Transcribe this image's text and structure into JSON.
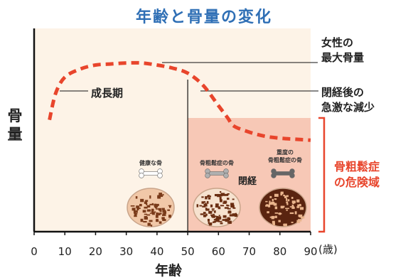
{
  "chart_data": {
    "type": "line",
    "title": "年齢と骨量の変化",
    "xlabel": "年齢",
    "ylabel": "骨量",
    "x_ticks": [
      "0",
      "10",
      "20",
      "30",
      "40",
      "50",
      "60",
      "70",
      "80",
      "90"
    ],
    "x_unit": "(歳)",
    "xlim": [
      0,
      90
    ],
    "ylim": [
      0,
      100
    ],
    "series": [
      {
        "x": [
          5,
          7,
          10,
          15,
          20,
          25,
          30,
          35,
          40,
          45,
          50,
          55,
          60,
          63,
          65,
          70,
          75,
          80,
          85,
          90
        ],
        "y": [
          55,
          68,
          76,
          80,
          82,
          82.5,
          83,
          83,
          82,
          80.5,
          78,
          72,
          62,
          56,
          52,
          49,
          47,
          46,
          45.5,
          45
        ]
      }
    ],
    "colors": {
      "curve": "#e8452c",
      "background": "#fdf3e7",
      "risk_zone": "#f7c8b6",
      "title": "#2f6fb5"
    },
    "annotations": {
      "peak": [
        "女性の",
        "最大骨量"
      ],
      "growth": "成長期",
      "decline": [
        "閉経後の",
        "急激な減少"
      ],
      "menopause": "閉経",
      "risk_zone": [
        "骨粗鬆症",
        "の危険域"
      ]
    },
    "bones": [
      {
        "label": "健康な骨"
      },
      {
        "label": "骨粗鬆症の骨"
      },
      {
        "label": [
          "重度の",
          "骨粗鬆症の骨"
        ]
      }
    ]
  }
}
